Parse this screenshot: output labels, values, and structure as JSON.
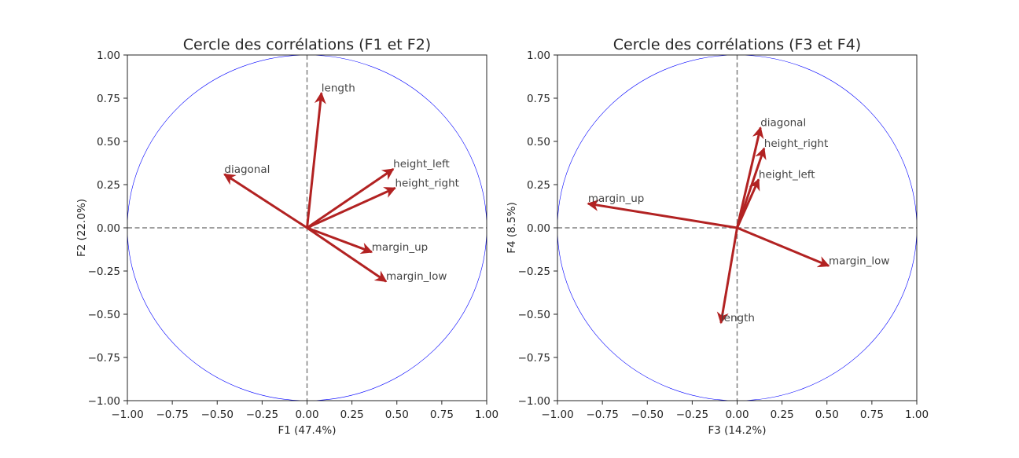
{
  "chart_data": [
    {
      "type": "scatter",
      "title": "Cercle des corrélations (F1 et F2)",
      "xlabel": "F1 (47.4%)",
      "ylabel": "F2 (22.0%)",
      "xlim": [
        -1,
        1
      ],
      "ylim": [
        -1,
        1
      ],
      "x_ticks": [
        "−1.00",
        "−0.75",
        "−0.50",
        "−0.25",
        "0.00",
        "0.25",
        "0.50",
        "0.75",
        "1.00"
      ],
      "y_ticks": [
        "−1.00",
        "−0.75",
        "−0.50",
        "−0.25",
        "0.00",
        "0.25",
        "0.50",
        "0.75",
        "1.00"
      ],
      "unit_circle": true,
      "zero_lines": true,
      "grid": false,
      "arrow_color": "#b22222",
      "circle_color": "#0000ff",
      "arrows": [
        {
          "label": "length",
          "x": 0.08,
          "y": 0.78
        },
        {
          "label": "diagonal",
          "x": -0.46,
          "y": 0.31
        },
        {
          "label": "height_left",
          "x": 0.48,
          "y": 0.34
        },
        {
          "label": "height_right",
          "x": 0.49,
          "y": 0.23
        },
        {
          "label": "margin_up",
          "x": 0.36,
          "y": -0.14
        },
        {
          "label": "margin_low",
          "x": 0.44,
          "y": -0.31
        }
      ]
    },
    {
      "type": "scatter",
      "title": "Cercle des corrélations (F3 et F4)",
      "xlabel": "F3 (14.2%)",
      "ylabel": "F4 (8.5%)",
      "xlim": [
        -1,
        1
      ],
      "ylim": [
        -1,
        1
      ],
      "x_ticks": [
        "−1.00",
        "−0.75",
        "−0.50",
        "−0.25",
        "0.00",
        "0.25",
        "0.50",
        "0.75",
        "1.00"
      ],
      "y_ticks": [
        "−1.00",
        "−0.75",
        "−0.50",
        "−0.25",
        "0.00",
        "0.25",
        "0.50",
        "0.75",
        "1.00"
      ],
      "unit_circle": true,
      "zero_lines": true,
      "grid": false,
      "arrow_color": "#b22222",
      "circle_color": "#0000ff",
      "arrows": [
        {
          "label": "diagonal",
          "x": 0.13,
          "y": 0.58
        },
        {
          "label": "height_right",
          "x": 0.15,
          "y": 0.46
        },
        {
          "label": "height_left",
          "x": 0.12,
          "y": 0.28
        },
        {
          "label": "margin_up",
          "x": -0.83,
          "y": 0.14
        },
        {
          "label": "margin_low",
          "x": 0.51,
          "y": -0.22
        },
        {
          "label": "length",
          "x": -0.09,
          "y": -0.55
        }
      ]
    }
  ]
}
